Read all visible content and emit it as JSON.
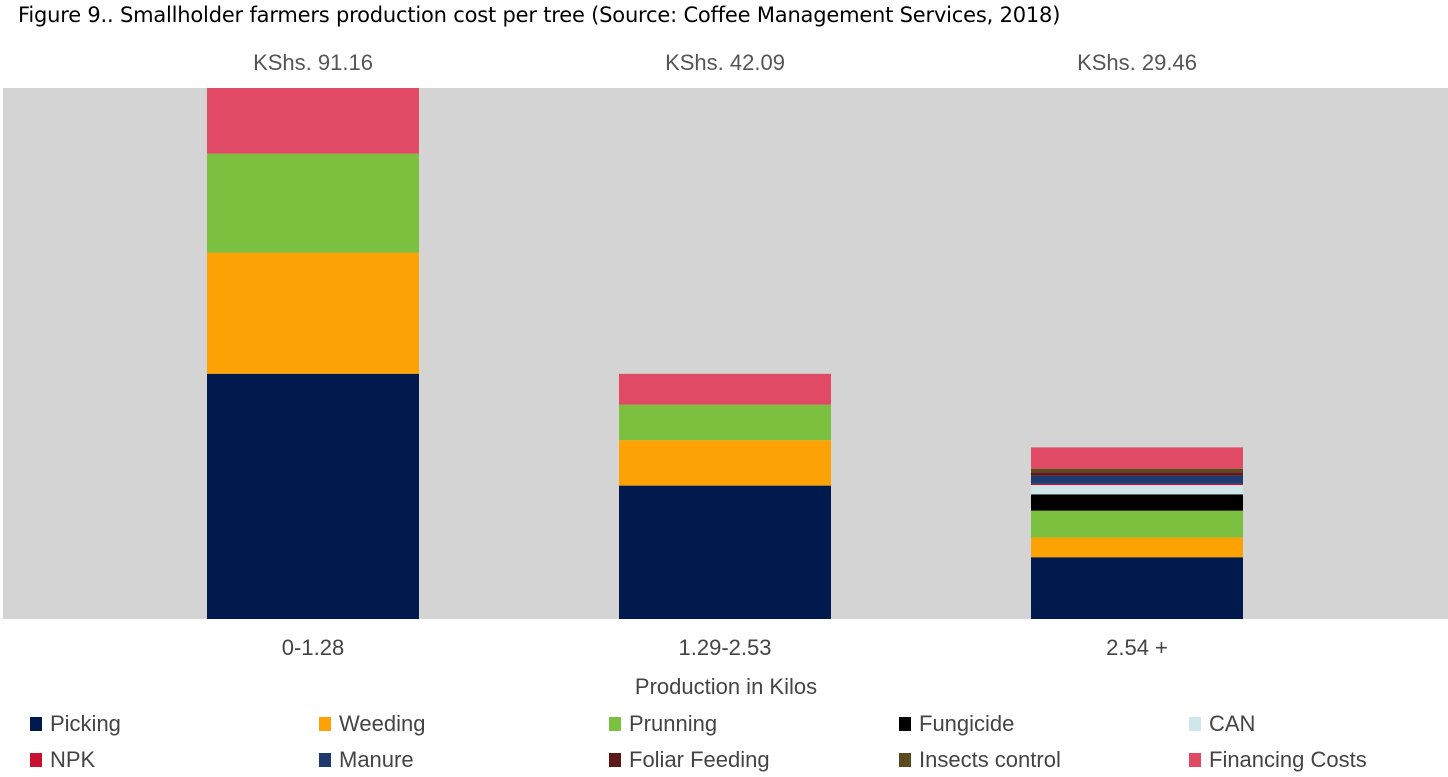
{
  "figure_title": "Figure 9.. Smallholder farmers production cost per tree (Source: Coffee Management Services, 2018)",
  "chart_data": {
    "type": "bar",
    "stacked": true,
    "categories": [
      "0-1.28",
      "1.29-2.53",
      "2.54 +"
    ],
    "totals_labels": [
      "KShs. 91.16",
      "KShs. 42.09",
      "KShs. 29.46"
    ],
    "totals": [
      91.16,
      42.09,
      29.46
    ],
    "xlabel": "Production in Kilos",
    "ylabel": "",
    "ylim": [
      0,
      91.16
    ],
    "grid": false,
    "legend_position": "bottom",
    "series": [
      {
        "name": "Picking",
        "color": "#001a4d",
        "values": [
          42.1,
          22.9,
          10.6
        ]
      },
      {
        "name": "Weeding",
        "color": "#fca205",
        "values": [
          20.8,
          7.8,
          3.4
        ]
      },
      {
        "name": "Prunning",
        "color": "#7bc03e",
        "values": [
          17.0,
          6.1,
          4.6
        ]
      },
      {
        "name": "Fungicide",
        "color": "#000000",
        "values": [
          0,
          0,
          2.8
        ]
      },
      {
        "name": "CAN",
        "color": "#cfe7ea",
        "values": [
          0,
          0,
          1.6
        ]
      },
      {
        "name": "NPK",
        "color": "#c8102e",
        "values": [
          0,
          0,
          0.2
        ]
      },
      {
        "name": "Manure",
        "color": "#1f3a6e",
        "values": [
          0,
          0,
          1.4
        ]
      },
      {
        "name": "Foliar Feeding",
        "color": "#5c1a1a",
        "values": [
          0,
          0,
          0.6
        ]
      },
      {
        "name": "Insects control",
        "color": "#5c4a1e",
        "values": [
          0,
          0,
          0.6
        ]
      },
      {
        "name": "Financing Costs",
        "color": "#e04a64",
        "values": [
          11.26,
          5.29,
          3.66
        ]
      }
    ]
  },
  "legend_rows": [
    [
      "Picking",
      "Weeding",
      "Prunning",
      "Fungicide",
      "CAN"
    ],
    [
      "NPK",
      "Manure",
      "Foliar Feeding",
      "Insects control",
      "Financing Costs"
    ]
  ]
}
